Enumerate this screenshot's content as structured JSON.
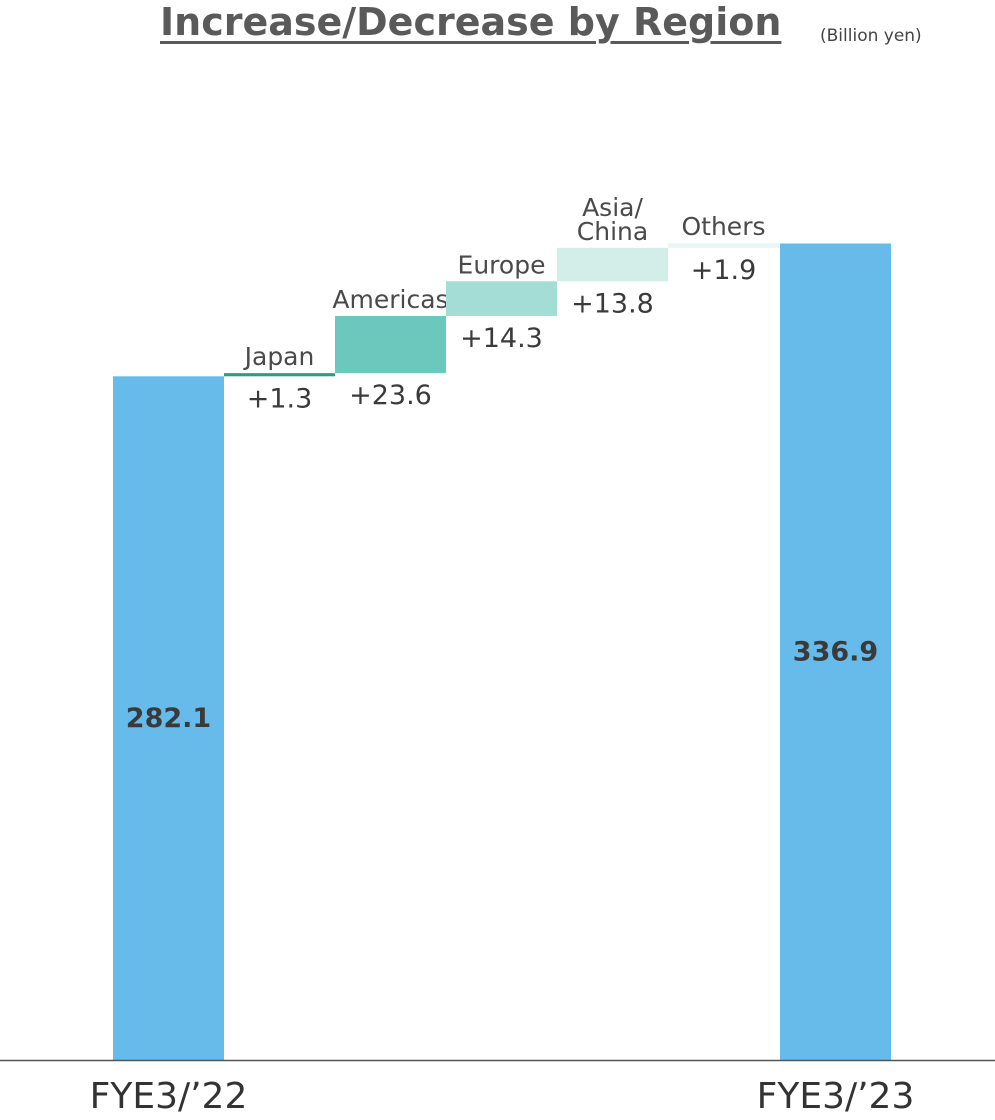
{
  "title": "Increase/Decrease by Region",
  "unit": "(Billion yen)",
  "chart_data": {
    "type": "bar",
    "subtype": "waterfall",
    "start": {
      "label": "FYE3/’22",
      "value": 282.1,
      "value_label": "282.1"
    },
    "end": {
      "label": "FYE3/’23",
      "value": 336.9,
      "value_label": "336.9"
    },
    "steps": [
      {
        "name": "Japan",
        "delta": 1.3,
        "delta_label": "+1.3",
        "color": "#2a9d8a"
      },
      {
        "name": "Americas",
        "delta": 23.6,
        "delta_label": "+23.6",
        "color": "#6cc8bc"
      },
      {
        "name": "Europe",
        "delta": 14.3,
        "delta_label": "+14.3",
        "color": "#a3ddd5"
      },
      {
        "name": "Asia/ China",
        "name_lines": [
          "Asia/",
          "China"
        ],
        "delta": 13.8,
        "delta_label": "+13.8",
        "color": "#d3ede9"
      },
      {
        "name": "Others",
        "delta": 1.9,
        "delta_label": "+1.9",
        "color": "#eaf6f4"
      }
    ],
    "total_color": "#66bbea",
    "ylim": [
      0,
      345
    ],
    "grid": false,
    "legend": "none"
  }
}
